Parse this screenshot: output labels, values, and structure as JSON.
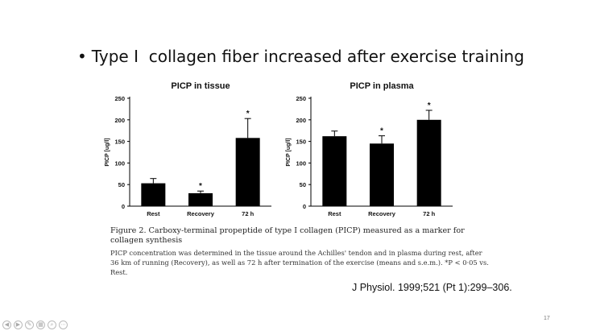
{
  "slide": {
    "bullet_symbol": "•",
    "bullet": "Type I  collagen fiber increased after exercise training",
    "caption_title": "Figure 2. Carboxy-terminal propeptide of type I collagen (PICP) measured as a marker for collagen synthesis",
    "caption_body": "PICP concentration was determined in the tissue around the Achilles' tendon and in plasma during rest, after 36 km of running (Recovery), as well as 72 h after termination of the exercise (means and s.e.m.). *P < 0·05 vs. Rest.",
    "citation": "J Physiol. 1999;521 (Pt 1):299–306.",
    "page_number": "17"
  },
  "controls": [
    {
      "name": "prev-icon",
      "glyph": "◀"
    },
    {
      "name": "next-icon",
      "glyph": "▶"
    },
    {
      "name": "pen-icon",
      "glyph": "✎"
    },
    {
      "name": "slides-icon",
      "glyph": "▦"
    },
    {
      "name": "zoom-icon",
      "glyph": "⌕"
    },
    {
      "name": "more-icon",
      "glyph": "⋯"
    }
  ],
  "chart_data": [
    {
      "type": "bar",
      "title": "PICP in tissue",
      "ylabel": "PICP [ug/l]",
      "xlabel": "",
      "categories": [
        "Rest",
        "Recovery",
        "72 h"
      ],
      "values": [
        53,
        30,
        158
      ],
      "errors": [
        11,
        5,
        45
      ],
      "significant": [
        false,
        true,
        true
      ],
      "ylim": [
        0,
        250
      ],
      "yticks": [
        0,
        50,
        100,
        150,
        200,
        250
      ],
      "color": "#000000"
    },
    {
      "type": "bar",
      "title": "PICP in plasma",
      "ylabel": "PICP [ug/l]",
      "xlabel": "",
      "categories": [
        "Rest",
        "Recovery",
        "72 h"
      ],
      "values": [
        162,
        145,
        200
      ],
      "errors": [
        12,
        18,
        22
      ],
      "significant": [
        false,
        true,
        true
      ],
      "ylim": [
        0,
        250
      ],
      "yticks": [
        0,
        50,
        100,
        150,
        200,
        250
      ],
      "color": "#000000"
    }
  ]
}
